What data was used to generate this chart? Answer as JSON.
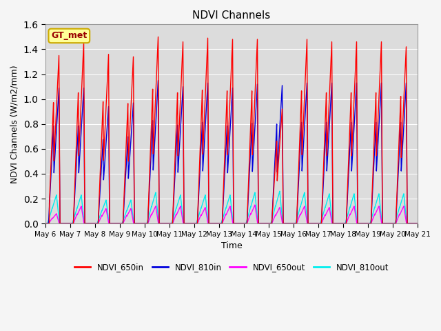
{
  "title": "NDVI Channels",
  "xlabel": "Time",
  "ylabel": "NDVI Channels (W/m2/mm)",
  "ylim": [
    0.0,
    1.6
  ],
  "n_days": 15,
  "background_color": "#dcdcdc",
  "fig_facecolor": "#f5f5f5",
  "series_colors": {
    "NDVI_650in": "#ff0000",
    "NDVI_810in": "#0000dd",
    "NDVI_650out": "#ff00ff",
    "NDVI_810out": "#00eeee"
  },
  "gt_met_label": "GT_met",
  "gt_met_facecolor": "#ffff99",
  "gt_met_edgecolor": "#ccaa00",
  "gt_met_text_color": "#990000",
  "tick_labels": [
    "May 6",
    "May 7",
    "May 8",
    "May 9",
    "May 10",
    "May 11",
    "May 12",
    "May 13",
    "May 14",
    "May 15",
    "May 16",
    "May 17",
    "May 18",
    "May 19",
    "May 20",
    "May 21"
  ],
  "legend_labels": [
    "NDVI_650in",
    "NDVI_810in",
    "NDVI_650out",
    "NDVI_810out"
  ],
  "legend_colors": [
    "#ff0000",
    "#0000dd",
    "#ff00ff",
    "#00eeee"
  ],
  "peak_650in": [
    1.35,
    1.46,
    1.36,
    1.34,
    1.5,
    1.46,
    1.49,
    1.48,
    1.48,
    0.92,
    1.48,
    1.46,
    1.46,
    1.46,
    1.42
  ],
  "peak_810in": [
    1.09,
    1.09,
    0.94,
    0.97,
    1.15,
    1.1,
    1.13,
    1.09,
    1.12,
    1.11,
    1.13,
    1.13,
    1.13,
    1.13,
    1.13
  ],
  "peak_650out": [
    0.08,
    0.14,
    0.12,
    0.12,
    0.14,
    0.14,
    0.13,
    0.14,
    0.15,
    0.13,
    0.14,
    0.13,
    0.14,
    0.14,
    0.14
  ],
  "peak_810out": [
    0.23,
    0.23,
    0.19,
    0.19,
    0.25,
    0.23,
    0.23,
    0.23,
    0.25,
    0.26,
    0.25,
    0.24,
    0.24,
    0.24,
    0.24
  ],
  "day0_650in_early": 0.39,
  "day0_810in_early": 0.26,
  "linewidth": 1.0,
  "grid_color": "#ffffff",
  "grid_linewidth": 0.8
}
